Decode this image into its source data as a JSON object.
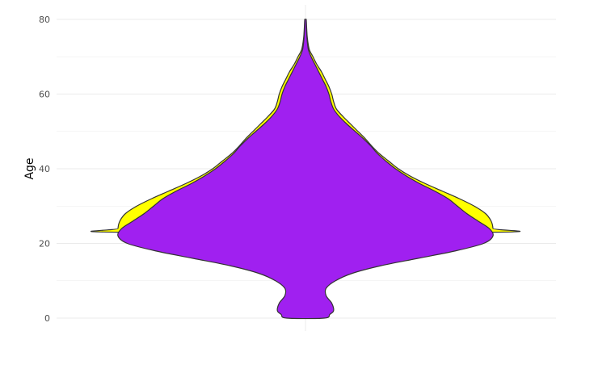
{
  "chart_data": {
    "type": "violin",
    "title": "",
    "xlabel": "",
    "ylabel": "Age",
    "ylim": [
      0,
      80
    ],
    "yticks": [
      0,
      20,
      40,
      60,
      80
    ],
    "grid": true,
    "legend": "none",
    "colors": {
      "outer": "#ffff00",
      "inner": "#a020f0",
      "outline": "#333333",
      "grid": "#ebebeb"
    },
    "series": [
      {
        "color": "#ffff00",
        "profile": [
          [
            80,
            0.004
          ],
          [
            78,
            0.006
          ],
          [
            75,
            0.01
          ],
          [
            72,
            0.02
          ],
          [
            70,
            0.04
          ],
          [
            68,
            0.06
          ],
          [
            66,
            0.085
          ],
          [
            64,
            0.105
          ],
          [
            62,
            0.125
          ],
          [
            60,
            0.14
          ],
          [
            58,
            0.15
          ],
          [
            56,
            0.165
          ],
          [
            54,
            0.2
          ],
          [
            52,
            0.24
          ],
          [
            50,
            0.28
          ],
          [
            48,
            0.32
          ],
          [
            46,
            0.355
          ],
          [
            44,
            0.395
          ],
          [
            42,
            0.445
          ],
          [
            40,
            0.495
          ],
          [
            38,
            0.56
          ],
          [
            36,
            0.64
          ],
          [
            34,
            0.73
          ],
          [
            32,
            0.82
          ],
          [
            30,
            0.9
          ],
          [
            28,
            0.96
          ],
          [
            26,
            0.99
          ],
          [
            24,
            1.0
          ],
          [
            23,
            0.995
          ]
        ]
      },
      {
        "color": "#a020f0",
        "profile": [
          [
            80,
            0.004
          ],
          [
            78,
            0.005
          ],
          [
            75,
            0.008
          ],
          [
            72,
            0.015
          ],
          [
            70,
            0.03
          ],
          [
            68,
            0.05
          ],
          [
            66,
            0.07
          ],
          [
            64,
            0.09
          ],
          [
            62,
            0.11
          ],
          [
            60,
            0.125
          ],
          [
            58,
            0.135
          ],
          [
            56,
            0.15
          ],
          [
            54,
            0.18
          ],
          [
            52,
            0.22
          ],
          [
            50,
            0.265
          ],
          [
            48,
            0.31
          ],
          [
            46,
            0.35
          ],
          [
            44,
            0.385
          ],
          [
            42,
            0.43
          ],
          [
            40,
            0.48
          ],
          [
            38,
            0.54
          ],
          [
            36,
            0.61
          ],
          [
            34,
            0.69
          ],
          [
            32,
            0.76
          ],
          [
            30,
            0.81
          ],
          [
            28,
            0.86
          ],
          [
            26,
            0.92
          ],
          [
            24,
            0.98
          ],
          [
            22,
            1.0
          ],
          [
            20,
            0.95
          ],
          [
            18,
            0.8
          ],
          [
            16,
            0.6
          ],
          [
            14,
            0.4
          ],
          [
            12,
            0.25
          ],
          [
            10,
            0.16
          ],
          [
            8,
            0.11
          ],
          [
            6,
            0.11
          ],
          [
            4,
            0.14
          ],
          [
            2,
            0.15
          ],
          [
            1,
            0.13
          ],
          [
            0,
            0.1
          ]
        ]
      }
    ]
  }
}
